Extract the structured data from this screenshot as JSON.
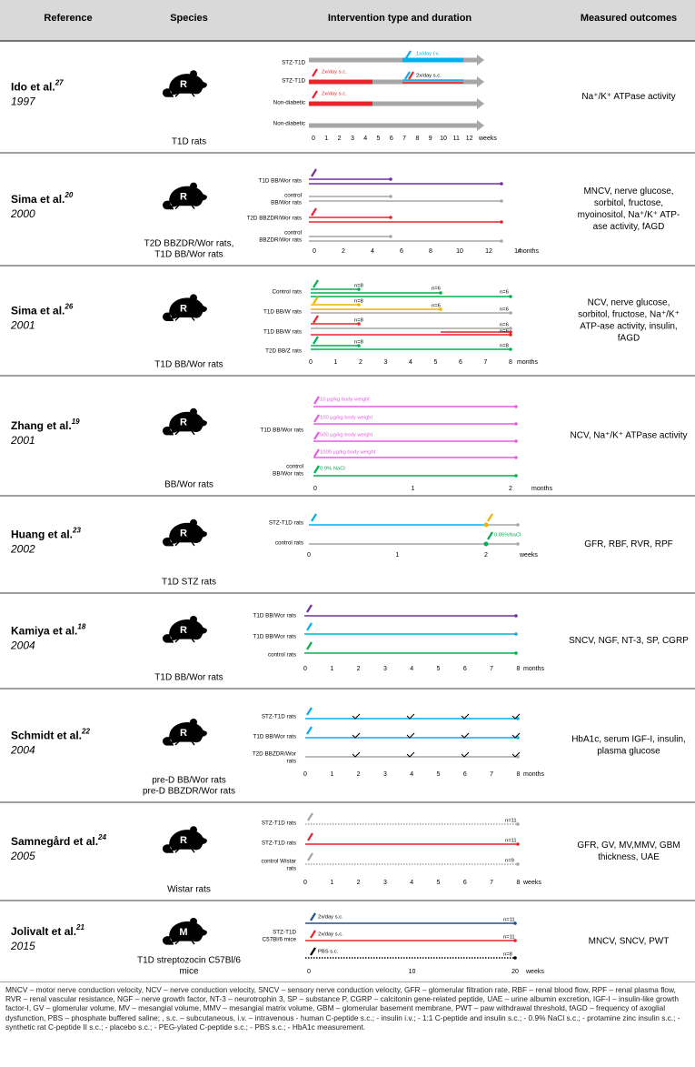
{
  "header": [
    "Reference",
    "Species",
    "Intervention type and duration",
    "Measured outcomes"
  ],
  "rows": [
    {
      "reference": "Ido et al.",
      "sup": "27",
      "year": "1997",
      "animal": "R",
      "species": [
        "T1D rats"
      ],
      "labels": [
        [
          "STZ-T1D"
        ],
        [
          "STZ-T1D"
        ],
        [
          "Non-diabetic"
        ],
        [
          "Non-diabetic"
        ]
      ],
      "annotations": [
        "1x/day i.v.",
        "2x/day s.c.",
        "2x/day s.c.",
        "2x/day s.c."
      ],
      "ticks": [
        0,
        1,
        2,
        3,
        4,
        5,
        6,
        7,
        8,
        9,
        10,
        11,
        12
      ],
      "unit": "weeks",
      "outcomes": [
        "Na⁺/K⁺ ATPase activity"
      ]
    },
    {
      "reference": "Sima et al.",
      "sup": "20",
      "year": "2000",
      "animal": "R",
      "species": [
        "T2D BBZDR/Wor rats,",
        "T1D BB/Wor rats"
      ],
      "labels": [
        [
          "T1D BB/Wor rats"
        ],
        [
          "control",
          "BB/Wor rats"
        ],
        [
          "T2D BBZDR/Wor rats"
        ],
        [
          "control",
          "BBZDR/Wor rats"
        ]
      ],
      "annotations": [],
      "ticks": [
        0,
        2,
        4,
        6,
        8,
        10,
        12,
        14
      ],
      "unit": "months",
      "outcomes": [
        "MNCV, nerve glucose,",
        "sorbitol, fructose,",
        "myoinositol, Na⁺/K⁺ ATP-",
        "ase activity, fAGD"
      ]
    },
    {
      "reference": "Sima et al.",
      "sup": "26",
      "year": "2001",
      "animal": "R",
      "species": [
        "T1D BB/Wor rats"
      ],
      "labels": [
        [
          "Control rats"
        ],
        [
          "T1D BB/W rats"
        ],
        [
          "T1D BB/W rats"
        ],
        [
          "T2D BB/Z rats"
        ]
      ],
      "annotations": [
        "n=8",
        "n=6",
        "n=6",
        "n=8",
        "n=6",
        "n=6",
        "n=8",
        "n=6",
        "n=6",
        "n=8",
        "n=8"
      ],
      "ticks": [
        0,
        1,
        2,
        3,
        4,
        5,
        6,
        7,
        8
      ],
      "unit": "months",
      "outcomes": [
        "NCV, nerve glucose,",
        "sorbitol, fructose, Na⁺/K⁺",
        "ATP-ase activity, insulin,",
        "fAGD"
      ]
    },
    {
      "reference": "Zhang et al.",
      "sup": "19",
      "year": "2001",
      "animal": "R",
      "species": [
        "BB/Wor rats"
      ],
      "labels": [
        [
          "T1D BB/Wor rats"
        ],
        [
          "control",
          "BB/Wor rats"
        ]
      ],
      "annotations": [
        "10 µg/kg body weight",
        "100 µg/kg body weight",
        "500 µg/kg body weight",
        "1000 µg/kg body weight",
        "0.9% NaCl"
      ],
      "ticks": [
        0,
        1,
        2
      ],
      "unit": "months",
      "outcomes": [
        "NCV, Na⁺/K⁺ ATPase activity"
      ]
    },
    {
      "reference": "Huang et al.",
      "sup": "23",
      "year": "2002",
      "animal": "R",
      "species": [
        "T1D STZ rats"
      ],
      "labels": [
        [
          "STZ-T1D rats"
        ],
        [
          "control rats"
        ]
      ],
      "annotations": [
        "0.85%NaCl"
      ],
      "ticks": [
        0,
        1,
        2
      ],
      "unit": "weeks",
      "outcomes": [
        "GFR, RBF, RVR, RPF"
      ]
    },
    {
      "reference": "Kamiya et al.",
      "sup": "18",
      "year": "2004",
      "animal": "R",
      "species": [
        "T1D BB/Wor rats"
      ],
      "labels": [
        [
          "T1D BB/Wor rats"
        ],
        [
          "T1D BB/Wor rats"
        ],
        [
          "control rats"
        ]
      ],
      "annotations": [],
      "ticks": [
        0,
        1,
        2,
        3,
        4,
        5,
        6,
        7,
        8
      ],
      "unit": "months",
      "outcomes": [
        "SNCV, NGF, NT-3, SP, CGRP"
      ]
    },
    {
      "reference": "Schmidt et al.",
      "sup": "22",
      "year": "2004",
      "animal": "R",
      "species": [
        "pre-D BB/Wor rats",
        "pre-D BBZDR/Wor rats"
      ],
      "labels": [
        [
          "STZ-T1D rats"
        ],
        [
          "T1D BB/Wor rats"
        ],
        [
          "T2D BBZDR/Wor",
          "rats"
        ]
      ],
      "annotations": [],
      "ticks": [
        0,
        1,
        2,
        3,
        4,
        5,
        6,
        7,
        8
      ],
      "unit": "months",
      "outcomes": [
        "HbA1c, serum IGF-I, insulin,",
        "plasma glucose"
      ]
    },
    {
      "reference": "Samnegård et al.",
      "sup": "24",
      "year": "2005",
      "animal": "R",
      "species": [
        "Wistar rats"
      ],
      "labels": [
        [
          "STZ-T1D rats"
        ],
        [
          "STZ-T1D rats"
        ],
        [
          "control Wistar",
          "rats"
        ]
      ],
      "annotations": [
        "n=11",
        "n=11",
        "n=9"
      ],
      "ticks": [
        0,
        1,
        2,
        3,
        4,
        5,
        6,
        7,
        8
      ],
      "unit": "weeks",
      "outcomes": [
        "GFR, GV, MV,MMV, GBM",
        "thickness, UAE"
      ]
    },
    {
      "reference": "Jolivalt et al.",
      "sup": "21",
      "year": "2015",
      "animal": "M",
      "species": [
        "T1D streptozocin C57Bl/6",
        "mice"
      ],
      "labels": [
        [
          "STZ-T1D",
          "C57Bl/6 mice"
        ]
      ],
      "annotations": [
        "2x/day s.c.",
        "2x/day s.c.",
        "PBS s.c.",
        "n=11",
        "n=11",
        "n=8"
      ],
      "ticks": [
        0,
        10,
        20
      ],
      "unit": "weeks",
      "outcomes": [
        "MNCV, SNCV, PWT"
      ]
    }
  ],
  "footnote": "MNCV – motor nerve conduction velocity, NCV – nerve conduction velocity, SNCV – sensory nerve conduction velocity, GFR – glomerular filtration rate, RBF – renal blood flow, RPF – renal plasma flow, RVR – renal vascular resistance, NGF – nerve growth factor, NT-3 – neurotrophin 3, SP – substance P, CGRP – calcitonin gene-related peptide, UAE – urine albumin excretion, IGF-I – insulin-like growth factor-I, GV – glomerular volume, MV – mesangial volume, MMV – mesangial matrix volume, GBM – glomerular basement membrane, PWT – paw withdrawal threshold, fAGD – frequency of axoglial dysfunction, PBS – phosphate buffered saline; , s.c. – subcutaneous, i.v. – intravenous    - human C-peptide s.c.;    - insulin i.v.;    - 1:1 C-peptide and insulin s.c.;    - 0.9% NaCl s.c.;    - protamine zinc insulin s.c.;    - synthetic rat C-peptide II s.c.;    - placebo s.c.;    - PEG-ylated C-peptide s.c.;    - PBS s.c.;    - HbA1c measurement."
}
